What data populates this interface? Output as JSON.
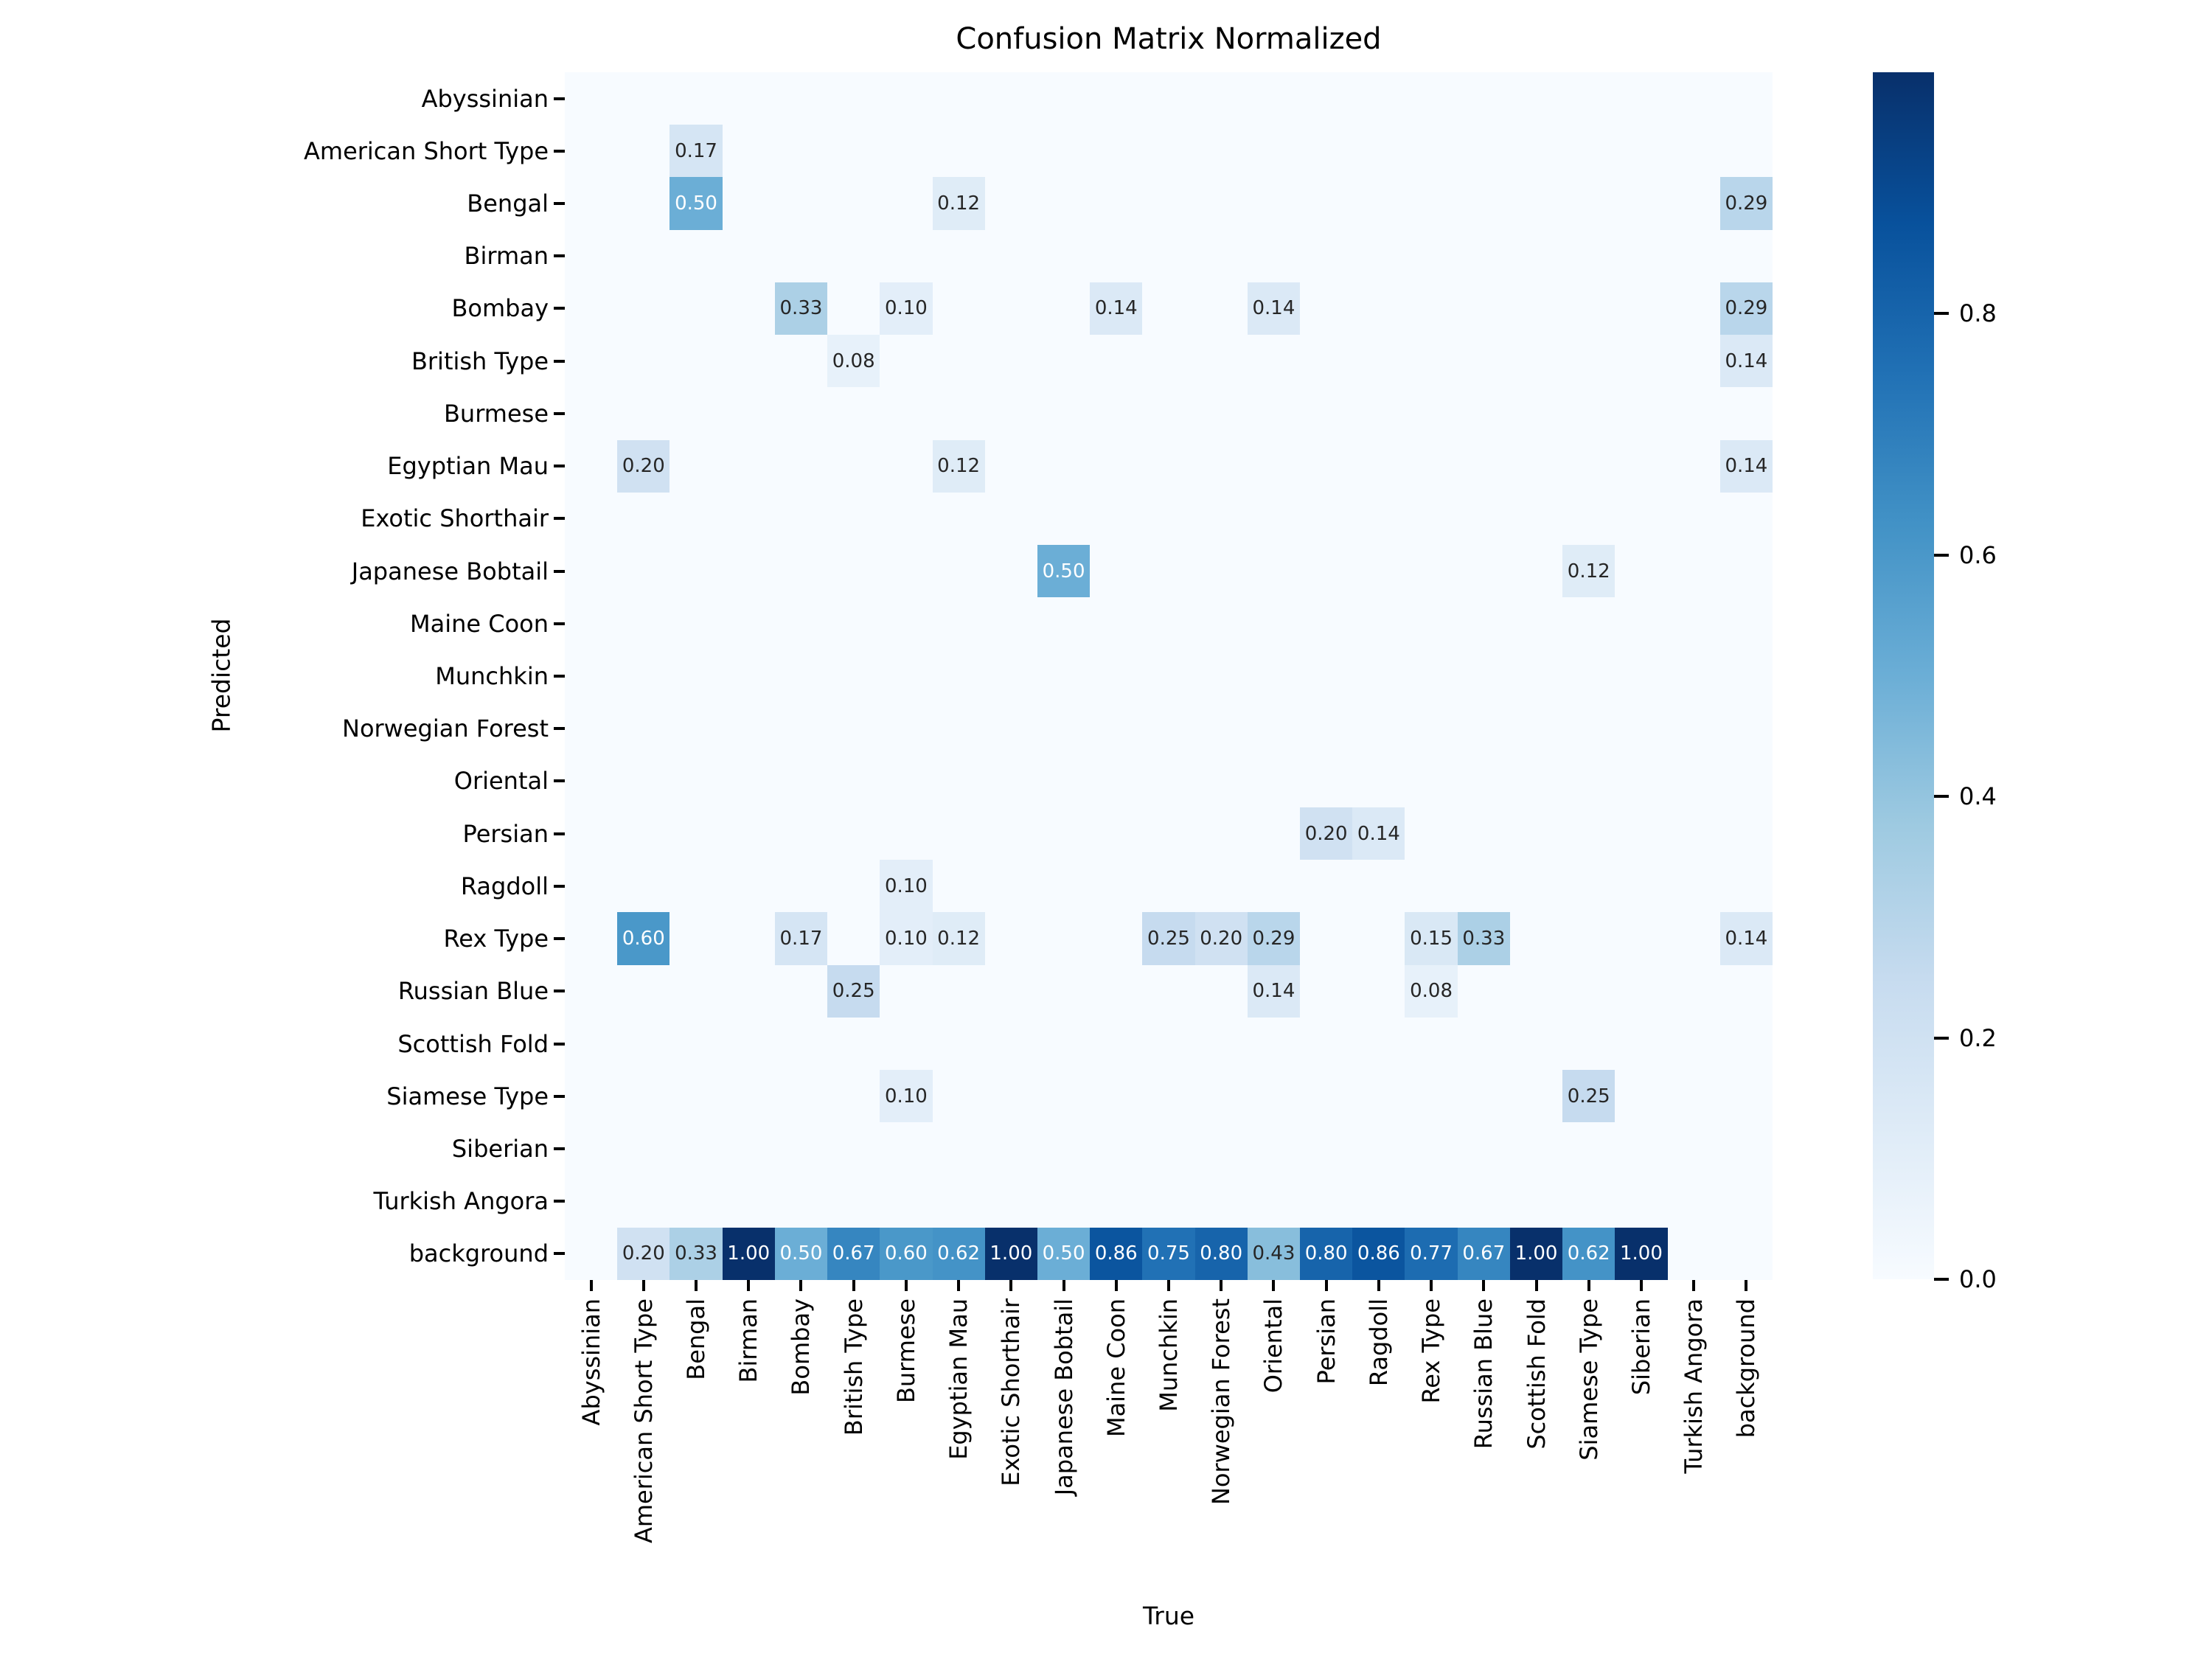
{
  "title": "Confusion Matrix Normalized",
  "chart_data": {
    "type": "heatmap",
    "title": "Confusion Matrix Normalized",
    "xlabel": "True",
    "ylabel": "Predicted",
    "x_categories": [
      "Abyssinian",
      "American Short Type",
      "Bengal",
      "Birman",
      "Bombay",
      "British Type",
      "Burmese",
      "Egyptian Mau",
      "Exotic Shorthair",
      "Japanese Bobtail",
      "Maine Coon",
      "Munchkin",
      "Norwegian Forest",
      "Oriental",
      "Persian",
      "Ragdoll",
      "Rex Type",
      "Russian Blue",
      "Scottish Fold",
      "Siamese Type",
      "Siberian",
      "Turkish Angora",
      "background"
    ],
    "y_categories": [
      "Abyssinian",
      "American Short Type",
      "Bengal",
      "Birman",
      "Bombay",
      "British Type",
      "Burmese",
      "Egyptian Mau",
      "Exotic Shorthair",
      "Japanese Bobtail",
      "Maine Coon",
      "Munchkin",
      "Norwegian Forest",
      "Oriental",
      "Persian",
      "Ragdoll",
      "Rex Type",
      "Russian Blue",
      "Scottish Fold",
      "Siamese Type",
      "Siberian",
      "Turkish Angora",
      "background"
    ],
    "vmin": 0.0,
    "vmax": 1.0,
    "grid": false,
    "colormap": "Blues",
    "colormap_stops": [
      "#f7fbff",
      "#deebf7",
      "#c6dbef",
      "#9ecae1",
      "#6baed6",
      "#4292c6",
      "#2171b5",
      "#08519c",
      "#08306b"
    ],
    "empty_cell_value": 0.0,
    "annotation_text_dark": "#262626",
    "annotation_text_light": "#ffffff",
    "colorbar": {
      "position": "right",
      "ticks": [
        {
          "label": "0.0",
          "value": 0.0
        },
        {
          "label": "0.2",
          "value": 0.2
        },
        {
          "label": "0.4",
          "value": 0.4
        },
        {
          "label": "0.6",
          "value": 0.6
        },
        {
          "label": "0.8",
          "value": 0.8
        }
      ]
    },
    "cells": [
      {
        "row": "American Short Type",
        "col": "Bengal",
        "value": 0.17,
        "label": "0.17"
      },
      {
        "row": "Bengal",
        "col": "Bengal",
        "value": 0.5,
        "label": "0.50"
      },
      {
        "row": "Bengal",
        "col": "Egyptian Mau",
        "value": 0.12,
        "label": "0.12"
      },
      {
        "row": "Bengal",
        "col": "background",
        "value": 0.29,
        "label": "0.29"
      },
      {
        "row": "Bombay",
        "col": "Bombay",
        "value": 0.33,
        "label": "0.33"
      },
      {
        "row": "Bombay",
        "col": "Burmese",
        "value": 0.1,
        "label": "0.10"
      },
      {
        "row": "Bombay",
        "col": "Maine Coon",
        "value": 0.14,
        "label": "0.14"
      },
      {
        "row": "Bombay",
        "col": "Oriental",
        "value": 0.14,
        "label": "0.14"
      },
      {
        "row": "Bombay",
        "col": "background",
        "value": 0.29,
        "label": "0.29"
      },
      {
        "row": "British Type",
        "col": "British Type",
        "value": 0.08,
        "label": "0.08"
      },
      {
        "row": "British Type",
        "col": "background",
        "value": 0.14,
        "label": "0.14"
      },
      {
        "row": "Egyptian Mau",
        "col": "American Short Type",
        "value": 0.2,
        "label": "0.20"
      },
      {
        "row": "Egyptian Mau",
        "col": "Egyptian Mau",
        "value": 0.12,
        "label": "0.12"
      },
      {
        "row": "Egyptian Mau",
        "col": "background",
        "value": 0.14,
        "label": "0.14"
      },
      {
        "row": "Japanese Bobtail",
        "col": "Japanese Bobtail",
        "value": 0.5,
        "label": "0.50"
      },
      {
        "row": "Japanese Bobtail",
        "col": "Siamese Type",
        "value": 0.12,
        "label": "0.12"
      },
      {
        "row": "Persian",
        "col": "Persian",
        "value": 0.2,
        "label": "0.20"
      },
      {
        "row": "Persian",
        "col": "Ragdoll",
        "value": 0.14,
        "label": "0.14"
      },
      {
        "row": "Ragdoll",
        "col": "Burmese",
        "value": 0.1,
        "label": "0.10"
      },
      {
        "row": "Rex Type",
        "col": "American Short Type",
        "value": 0.6,
        "label": "0.60"
      },
      {
        "row": "Rex Type",
        "col": "Bombay",
        "value": 0.17,
        "label": "0.17"
      },
      {
        "row": "Rex Type",
        "col": "Burmese",
        "value": 0.1,
        "label": "0.10"
      },
      {
        "row": "Rex Type",
        "col": "Egyptian Mau",
        "value": 0.12,
        "label": "0.12"
      },
      {
        "row": "Rex Type",
        "col": "Munchkin",
        "value": 0.25,
        "label": "0.25"
      },
      {
        "row": "Rex Type",
        "col": "Norwegian Forest",
        "value": 0.2,
        "label": "0.20"
      },
      {
        "row": "Rex Type",
        "col": "Oriental",
        "value": 0.29,
        "label": "0.29"
      },
      {
        "row": "Rex Type",
        "col": "Rex Type",
        "value": 0.15,
        "label": "0.15"
      },
      {
        "row": "Rex Type",
        "col": "Russian Blue",
        "value": 0.33,
        "label": "0.33"
      },
      {
        "row": "Rex Type",
        "col": "background",
        "value": 0.14,
        "label": "0.14"
      },
      {
        "row": "Russian Blue",
        "col": "British Type",
        "value": 0.25,
        "label": "0.25"
      },
      {
        "row": "Russian Blue",
        "col": "Oriental",
        "value": 0.14,
        "label": "0.14"
      },
      {
        "row": "Russian Blue",
        "col": "Rex Type",
        "value": 0.08,
        "label": "0.08"
      },
      {
        "row": "Siamese Type",
        "col": "Burmese",
        "value": 0.1,
        "label": "0.10"
      },
      {
        "row": "Siamese Type",
        "col": "Siamese Type",
        "value": 0.25,
        "label": "0.25"
      },
      {
        "row": "background",
        "col": "American Short Type",
        "value": 0.2,
        "label": "0.20"
      },
      {
        "row": "background",
        "col": "Bengal",
        "value": 0.33,
        "label": "0.33"
      },
      {
        "row": "background",
        "col": "Birman",
        "value": 1.0,
        "label": "1.00"
      },
      {
        "row": "background",
        "col": "Bombay",
        "value": 0.5,
        "label": "0.50"
      },
      {
        "row": "background",
        "col": "British Type",
        "value": 0.67,
        "label": "0.67"
      },
      {
        "row": "background",
        "col": "Burmese",
        "value": 0.6,
        "label": "0.60"
      },
      {
        "row": "background",
        "col": "Egyptian Mau",
        "value": 0.62,
        "label": "0.62"
      },
      {
        "row": "background",
        "col": "Exotic Shorthair",
        "value": 1.0,
        "label": "1.00"
      },
      {
        "row": "background",
        "col": "Japanese Bobtail",
        "value": 0.5,
        "label": "0.50"
      },
      {
        "row": "background",
        "col": "Maine Coon",
        "value": 0.86,
        "label": "0.86"
      },
      {
        "row": "background",
        "col": "Munchkin",
        "value": 0.75,
        "label": "0.75"
      },
      {
        "row": "background",
        "col": "Norwegian Forest",
        "value": 0.8,
        "label": "0.80"
      },
      {
        "row": "background",
        "col": "Oriental",
        "value": 0.43,
        "label": "0.43"
      },
      {
        "row": "background",
        "col": "Persian",
        "value": 0.8,
        "label": "0.80"
      },
      {
        "row": "background",
        "col": "Ragdoll",
        "value": 0.86,
        "label": "0.86"
      },
      {
        "row": "background",
        "col": "Rex Type",
        "value": 0.77,
        "label": "0.77"
      },
      {
        "row": "background",
        "col": "Russian Blue",
        "value": 0.67,
        "label": "0.67"
      },
      {
        "row": "background",
        "col": "Scottish Fold",
        "value": 1.0,
        "label": "1.00"
      },
      {
        "row": "background",
        "col": "Siamese Type",
        "value": 0.62,
        "label": "0.62"
      },
      {
        "row": "background",
        "col": "Siberian",
        "value": 1.0,
        "label": "1.00"
      }
    ]
  }
}
